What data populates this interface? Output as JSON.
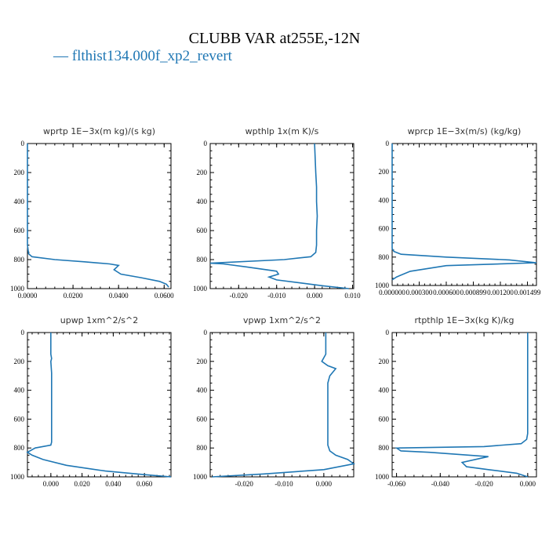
{
  "figure": {
    "title": "CLUBB VAR at255E,-12N",
    "legend_label": "— flthist134.000f_xp2_revert",
    "series_color": "#1f77b4"
  },
  "chart_data": [
    {
      "type": "line",
      "title": "wprtp  1E−3x(m kg)/(s kg)",
      "xlim": [
        0,
        0.063
      ],
      "ylim": [
        1000,
        0
      ],
      "xticks": [
        0,
        0.02,
        0.04,
        0.06
      ],
      "xtick_labels": [
        "0.0000",
        "0.0200",
        "0.0400",
        "0.0600"
      ],
      "yticks": [
        0,
        200,
        400,
        600,
        800,
        1000
      ],
      "ytick_labels": [
        "0",
        "200",
        "400",
        "600",
        "800",
        "1000"
      ],
      "series": [
        {
          "x": [
            0.0,
            0.0,
            0.0,
            0.0005,
            0.002,
            0.012,
            0.025,
            0.036,
            0.04,
            0.038,
            0.041,
            0.05,
            0.058,
            0.061,
            0.062
          ],
          "y": [
            0,
            300,
            700,
            760,
            780,
            800,
            815,
            830,
            840,
            870,
            900,
            925,
            950,
            970,
            990
          ]
        }
      ]
    },
    {
      "type": "line",
      "title": "wpthlp  1x(m K)/s",
      "xlim": [
        -0.0275,
        0.0103
      ],
      "ylim": [
        1000,
        0
      ],
      "xticks": [
        -0.02,
        -0.01,
        0.0,
        0.01
      ],
      "xtick_labels": [
        "-0.020",
        "-0.010",
        "0.000",
        "0.010"
      ],
      "yticks": [
        0,
        200,
        400,
        600,
        800,
        1000
      ],
      "ytick_labels": [
        "0",
        "200",
        "400",
        "600",
        "800",
        "1000"
      ],
      "series": [
        {
          "x": [
            0.0,
            0.0003,
            0.0005,
            0.0005,
            0.0007,
            0.0005,
            0.0005,
            0.0003,
            -0.001,
            -0.008,
            -0.0275,
            -0.024,
            -0.018,
            -0.01,
            -0.0095,
            -0.012,
            -0.01,
            -0.004,
            0.002,
            0.009
          ],
          "y": [
            0,
            200,
            300,
            400,
            500,
            600,
            700,
            750,
            780,
            800,
            825,
            830,
            850,
            880,
            900,
            920,
            940,
            960,
            980,
            1000
          ]
        }
      ]
    },
    {
      "type": "line",
      "title": "wprcp  1E−3x(m/s) (kg/kg)",
      "xlim": [
        0.0,
        0.0016
      ],
      "ylim": [
        1000,
        0
      ],
      "xticks": [
        0.0,
        0.0003,
        0.0006,
        0.0009,
        0.0012,
        0.0015
      ],
      "xtick_labels": [
        "0.000000",
        "0.000300",
        "0.000600",
        "0.000899",
        "0.001200",
        "0.001499"
      ],
      "yticks": [
        0,
        200,
        400,
        600,
        800,
        1000
      ],
      "ytick_labels": [
        "0",
        "200",
        "400",
        "600",
        "800",
        "1000"
      ],
      "series": [
        {
          "x": [
            0.0,
            0.0,
            0.0,
            2e-05,
            0.0001,
            0.0006,
            0.0013,
            0.0016,
            0.0006,
            0.0002,
            5e-05,
            0.0
          ],
          "y": [
            0,
            400,
            740,
            760,
            780,
            800,
            820,
            840,
            860,
            900,
            940,
            960
          ]
        }
      ]
    },
    {
      "type": "line",
      "title": "upwp  1xm^2/s^2",
      "xlim": [
        -0.015,
        0.077
      ],
      "ylim": [
        1000,
        0
      ],
      "xticks": [
        0.0,
        0.02,
        0.04,
        0.06
      ],
      "xtick_labels": [
        "0.000",
        "0.020",
        "0.040",
        "0.060"
      ],
      "yticks": [
        0,
        200,
        400,
        600,
        800,
        1000
      ],
      "ytick_labels": [
        "0",
        "200",
        "400",
        "600",
        "800",
        "1000"
      ],
      "series": [
        {
          "x": [
            0.0,
            0.0,
            0.0005,
            0.0,
            0.0005,
            0.0005,
            0.0005,
            0.0005,
            0.0,
            -0.01,
            -0.015,
            -0.012,
            -0.005,
            0.01,
            0.035,
            0.06,
            0.077
          ],
          "y": [
            0,
            150,
            180,
            200,
            280,
            400,
            600,
            760,
            780,
            800,
            830,
            850,
            880,
            920,
            960,
            985,
            1000
          ]
        }
      ]
    },
    {
      "type": "line",
      "title": "vpwp  1xm^2/s^2",
      "xlim": [
        -0.0285,
        0.0075
      ],
      "ylim": [
        1000,
        0
      ],
      "xticks": [
        -0.02,
        -0.01,
        0.0
      ],
      "xtick_labels": [
        "-0.020",
        "-0.010",
        "0.000"
      ],
      "yticks": [
        0,
        200,
        400,
        600,
        800,
        1000
      ],
      "ytick_labels": [
        "0",
        "200",
        "400",
        "600",
        "800",
        "1000"
      ],
      "series": [
        {
          "x": [
            0.0005,
            0.0005,
            0.0005,
            -0.0005,
            0.001,
            0.003,
            0.0015,
            0.001,
            0.001,
            0.001,
            0.001,
            0.0015,
            0.003,
            0.006,
            0.0075,
            0.0,
            -0.015,
            -0.028
          ],
          "y": [
            0,
            100,
            150,
            200,
            230,
            250,
            300,
            350,
            500,
            700,
            780,
            820,
            850,
            880,
            910,
            950,
            980,
            1000
          ]
        }
      ]
    },
    {
      "type": "line",
      "title": "rtpthlp  1E−3x(kg K)/kg",
      "xlim": [
        -0.062,
        0.004
      ],
      "ylim": [
        1000,
        0
      ],
      "xticks": [
        -0.06,
        -0.04,
        -0.02,
        0.0
      ],
      "xtick_labels": [
        "-0.060",
        "-0.040",
        "-0.020",
        "0.000"
      ],
      "yticks": [
        0,
        200,
        400,
        600,
        800,
        1000
      ],
      "ytick_labels": [
        "0",
        "200",
        "400",
        "600",
        "800",
        "1000"
      ],
      "series": [
        {
          "x": [
            0.0,
            0.0,
            0.0,
            -0.0005,
            -0.003,
            -0.02,
            -0.06,
            -0.058,
            -0.045,
            -0.018,
            -0.03,
            -0.028,
            -0.018,
            -0.005,
            0.0
          ],
          "y": [
            0,
            300,
            700,
            740,
            770,
            790,
            800,
            820,
            830,
            860,
            900,
            930,
            950,
            975,
            1000
          ]
        }
      ]
    }
  ]
}
